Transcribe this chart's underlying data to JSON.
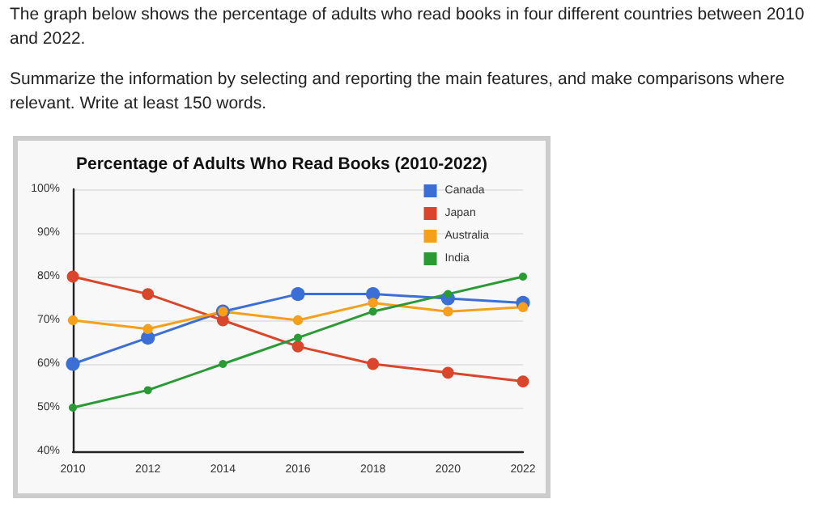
{
  "chart_data": {
    "type": "line",
    "title": "Percentage of Adults Who Read Books (2010-2022)",
    "annotations": [
      "The graph below shows the percentage of adults who read books in four different countries between 2010 and 2022.",
      "Summarize the information by selecting and reporting the main features, and make comparisons where relevant. Write at least 150 words."
    ],
    "categories": [
      "2010",
      "2012",
      "2014",
      "2016",
      "2018",
      "2020",
      "2022"
    ],
    "series": [
      {
        "name": "Canada",
        "color": "#3c6fd6",
        "values": [
          60,
          66,
          72,
          76,
          76,
          75,
          74
        ]
      },
      {
        "name": "Japan",
        "color": "#d9462b",
        "values": [
          80,
          76,
          70,
          64,
          60,
          58,
          56
        ]
      },
      {
        "name": "Australia",
        "color": "#f5a01a",
        "values": [
          70,
          68,
          72,
          70,
          74,
          72,
          73
        ]
      },
      {
        "name": "India",
        "color": "#2a9a35",
        "values": [
          50,
          54,
          60,
          66,
          72,
          76,
          80
        ]
      }
    ],
    "ylim": [
      40,
      100
    ],
    "yticks": [
      {
        "value": 40,
        "label": "40%"
      },
      {
        "value": 50,
        "label": "50%"
      },
      {
        "value": 60,
        "label": "60%"
      },
      {
        "value": 70,
        "label": "70%"
      },
      {
        "value": 80,
        "label": "80%"
      },
      {
        "value": 90,
        "label": "90%"
      },
      {
        "value": 100,
        "label": "100%"
      }
    ],
    "grid": "y",
    "legend": "top right",
    "marker": "circle",
    "line_style": "solid"
  }
}
